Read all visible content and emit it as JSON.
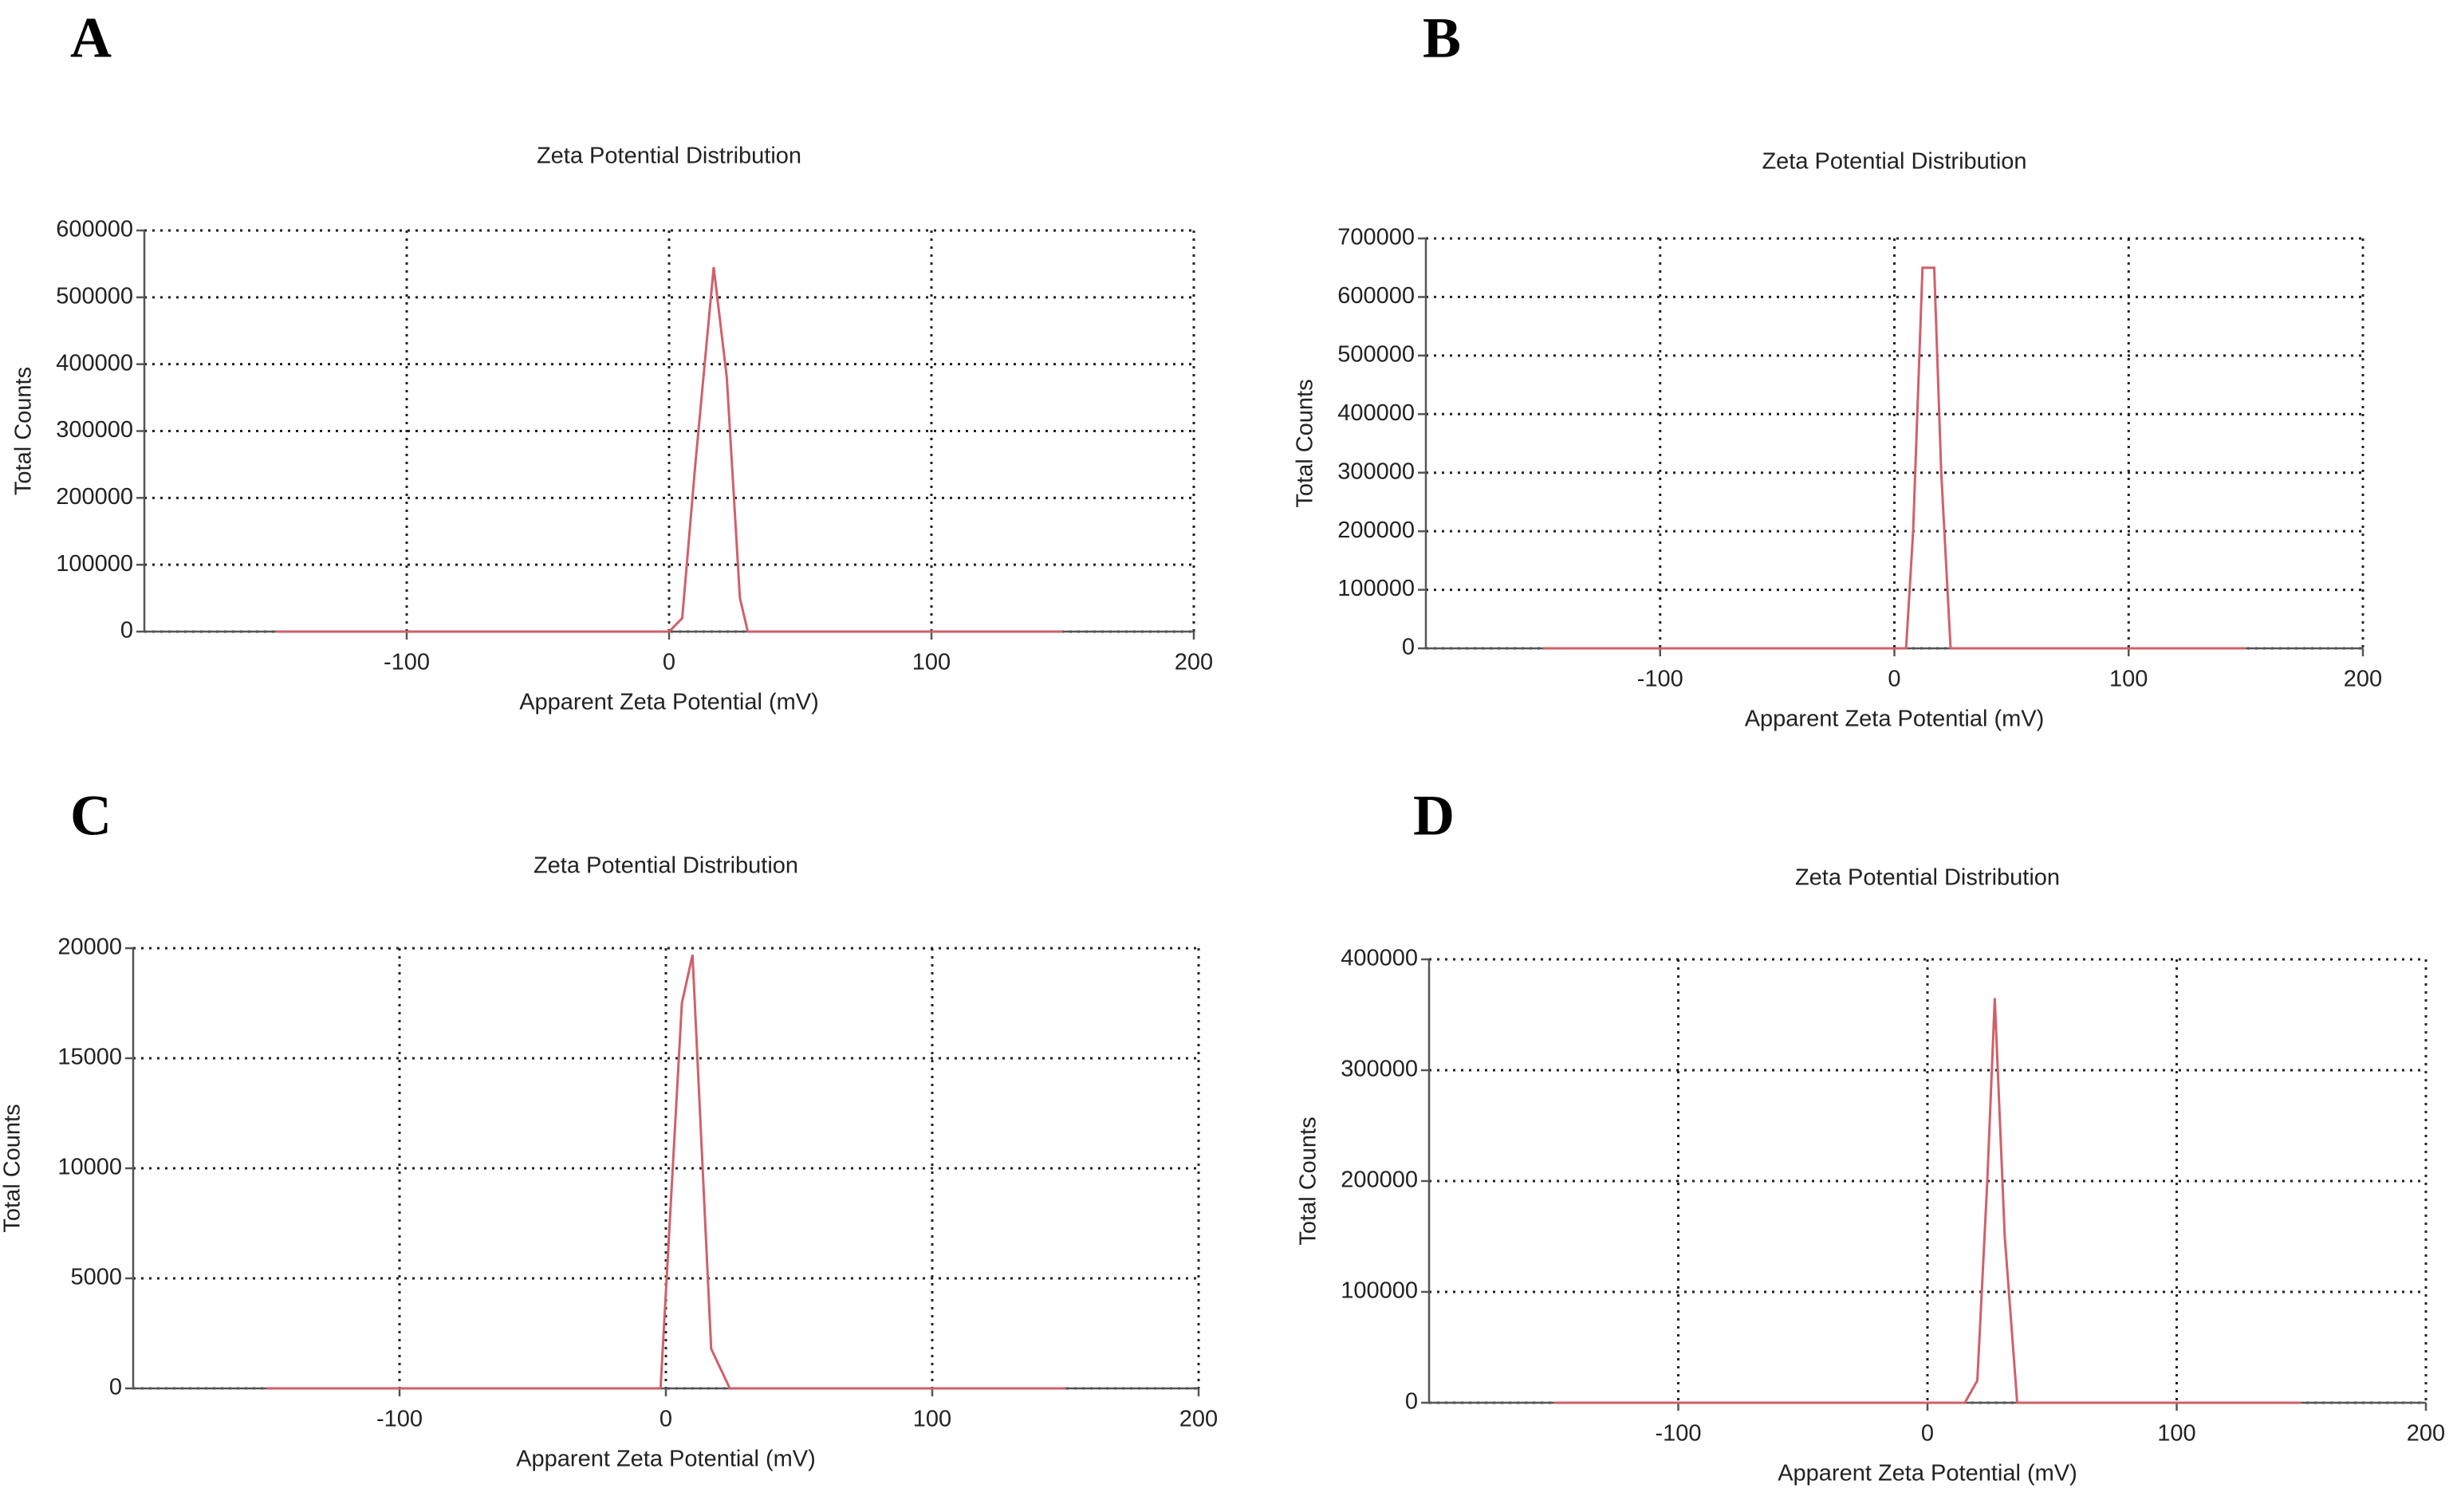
{
  "chart_data": [
    {
      "type": "line",
      "panel": "A",
      "title": "Zeta Potential Distribution",
      "x_label": "Apparent Zeta Potential (mV)",
      "y_label": "Total Counts",
      "x": [
        -150,
        0,
        5,
        10,
        17,
        22,
        27,
        30,
        150
      ],
      "values": [
        0,
        0,
        20000,
        250000,
        545000,
        380000,
        50000,
        0,
        0
      ],
      "color": "#d0606a",
      "xlim": [
        -200,
        200
      ],
      "xticks": [
        -100,
        0,
        100,
        200
      ],
      "ylim": [
        0,
        600000
      ],
      "yticks": [
        0,
        100000,
        200000,
        300000,
        400000,
        500000,
        600000
      ],
      "grid": true
    },
    {
      "type": "line",
      "panel": "B",
      "title": "Zeta Potential Distribution",
      "x_label": "Apparent Zeta Potential (mV)",
      "y_label": "Total Counts",
      "x": [
        -150,
        5,
        8,
        12,
        17,
        20,
        24,
        150
      ],
      "values": [
        0,
        0,
        200000,
        650000,
        650000,
        300000,
        0,
        0
      ],
      "color": "#d0606a",
      "xlim": [
        -200,
        200
      ],
      "xticks": [
        -100,
        0,
        100,
        200
      ],
      "ylim": [
        0,
        700000
      ],
      "yticks": [
        0,
        100000,
        200000,
        300000,
        400000,
        500000,
        600000,
        700000
      ],
      "grid": true
    },
    {
      "type": "line",
      "panel": "C",
      "title": "Zeta Potential Distribution",
      "x_label": "Apparent Zeta Potential (mV)",
      "y_label": "Total Counts",
      "x": [
        -150,
        -2,
        6,
        10,
        17,
        24,
        150
      ],
      "values": [
        0,
        0,
        17500,
        19700,
        1800,
        0,
        0
      ],
      "color": "#d0606a",
      "xlim": [
        -200,
        200
      ],
      "xticks": [
        -100,
        0,
        100,
        200
      ],
      "ylim": [
        0,
        20000
      ],
      "yticks": [
        0,
        5000,
        10000,
        15000,
        20000
      ],
      "grid": true
    },
    {
      "type": "line",
      "panel": "D",
      "title": "Zeta Potential Distribution",
      "x_label": "Apparent Zeta Potential (mV)",
      "y_label": "Total Counts",
      "x": [
        -150,
        15,
        20,
        24,
        27,
        31,
        36,
        150
      ],
      "values": [
        0,
        0,
        20000,
        200000,
        365000,
        150000,
        0,
        0
      ],
      "color": "#d0606a",
      "xlim": [
        -200,
        200
      ],
      "xticks": [
        -100,
        0,
        100,
        200
      ],
      "ylim": [
        0,
        400000
      ],
      "yticks": [
        0,
        100000,
        200000,
        300000,
        400000
      ],
      "grid": true
    }
  ]
}
